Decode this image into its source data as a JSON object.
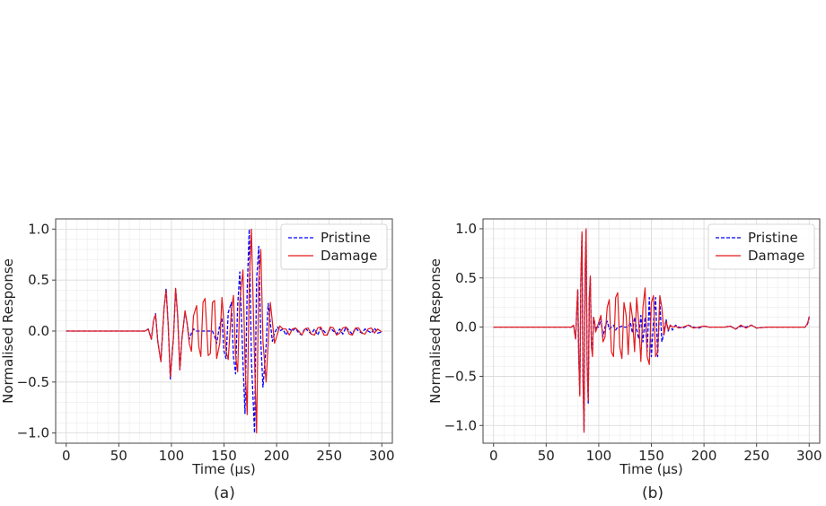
{
  "chart_data": [
    {
      "type": "line",
      "caption": "(a)",
      "xlabel": "Time (μs)",
      "ylabel": "Normalised Response",
      "xlim": [
        -10,
        310
      ],
      "ylim": [
        -1.1,
        1.1
      ],
      "xticks": [
        0,
        50,
        100,
        150,
        200,
        250,
        300
      ],
      "yticks": [
        -1.0,
        -0.5,
        0.0,
        0.5,
        1.0
      ],
      "xtick_labels": [
        "0",
        "50",
        "100",
        "150",
        "200",
        "250",
        "300"
      ],
      "ytick_labels": [
        "−1.0",
        "−0.5",
        "0.0",
        "0.5",
        "1.0"
      ],
      "grid": true,
      "legend_position": "top-right",
      "series": [
        {
          "name": "Pristine",
          "color": "#0000ff",
          "style": "dashed",
          "x": [
            0,
            75,
            78,
            81,
            83,
            85,
            87,
            90,
            93,
            95,
            97,
            99,
            102,
            104,
            106,
            108,
            110,
            113,
            115,
            117,
            119,
            121,
            124,
            126,
            128,
            130,
            132,
            135,
            137,
            139,
            141,
            143,
            146,
            148,
            150,
            152,
            154,
            157,
            159,
            161,
            163,
            165,
            168,
            170,
            172,
            174,
            176,
            179,
            181,
            183,
            185,
            187,
            190,
            192,
            194,
            196,
            198,
            201,
            203,
            206,
            209,
            212,
            215,
            218,
            221,
            224,
            227,
            230,
            233,
            236,
            239,
            242,
            245,
            248,
            251,
            254,
            257,
            260,
            263,
            266,
            269,
            272,
            275,
            278,
            281,
            284,
            287,
            290,
            293,
            296,
            300
          ],
          "y": [
            0,
            0,
            0.02,
            -0.08,
            0.1,
            0.17,
            -0.1,
            -0.3,
            0.22,
            0.42,
            0.05,
            -0.47,
            -0.05,
            0.41,
            0.15,
            -0.38,
            -0.08,
            0.19,
            0.07,
            -0.08,
            -0.02,
            0.02,
            0.0,
            0.0,
            0.0,
            0.0,
            0.0,
            0.0,
            0.0,
            0.0,
            -0.05,
            -0.12,
            0.06,
            0.12,
            -0.2,
            -0.27,
            0.18,
            0.28,
            -0.25,
            -0.42,
            0.25,
            0.58,
            -0.3,
            -0.81,
            0.4,
            1.0,
            -0.28,
            -1.0,
            0.5,
            0.83,
            -0.1,
            -0.55,
            -0.15,
            0.27,
            0.08,
            -0.1,
            -0.02,
            0.04,
            0.0,
            0.02,
            -0.04,
            0.02,
            0.0,
            0.03,
            -0.02,
            -0.04,
            0.03,
            0.0,
            -0.03,
            0.02,
            -0.04,
            0.03,
            0.0,
            -0.04,
            0.03,
            0.0,
            -0.03,
            0.02,
            -0.03,
            0.04,
            0.0,
            -0.03,
            0.03,
            0.0,
            -0.02,
            0.02,
            0.0,
            -0.02,
            0.03,
            -0.02,
            -0.01
          ]
        },
        {
          "name": "Damage",
          "color": "#e41a1c",
          "style": "solid",
          "x": [
            0,
            75,
            78,
            81,
            83,
            85,
            87,
            90,
            93,
            95,
            97,
            99,
            102,
            104,
            106,
            108,
            110,
            113,
            115,
            117,
            119,
            121,
            124,
            126,
            128,
            130,
            132,
            135,
            137,
            139,
            141,
            143,
            146,
            148,
            150,
            152,
            154,
            157,
            159,
            161,
            163,
            165,
            168,
            170,
            172,
            174,
            176,
            179,
            181,
            183,
            185,
            187,
            190,
            192,
            194,
            196,
            198,
            201,
            203,
            206,
            209,
            212,
            215,
            218,
            221,
            224,
            227,
            230,
            233,
            236,
            239,
            242,
            245,
            248,
            251,
            254,
            257,
            260,
            263,
            266,
            269,
            272,
            275,
            278,
            281,
            284,
            287,
            290,
            293,
            296,
            300
          ],
          "y": [
            0,
            0,
            0.02,
            -0.08,
            0.1,
            0.16,
            -0.1,
            -0.3,
            0.22,
            0.4,
            0.05,
            -0.45,
            -0.05,
            0.42,
            0.15,
            -0.38,
            -0.08,
            0.2,
            0.07,
            -0.12,
            -0.2,
            0.15,
            0.25,
            -0.15,
            -0.25,
            0.28,
            0.32,
            -0.24,
            -0.22,
            0.28,
            0.3,
            -0.27,
            -0.12,
            0.33,
            0.07,
            -0.2,
            -0.28,
            0.2,
            0.35,
            -0.24,
            -0.4,
            0.3,
            0.6,
            -0.3,
            -0.82,
            0.45,
            1.0,
            -0.28,
            -1.0,
            0.5,
            0.8,
            -0.1,
            -0.5,
            -0.12,
            0.28,
            0.09,
            -0.12,
            -0.02,
            0.05,
            0.02,
            0.02,
            -0.04,
            0.02,
            0.03,
            0.0,
            -0.04,
            0.02,
            0.03,
            -0.03,
            -0.04,
            0.03,
            0.04,
            -0.04,
            -0.04,
            0.04,
            0.03,
            -0.04,
            -0.02,
            0.03,
            0.04,
            -0.03,
            -0.04,
            0.03,
            0.03,
            -0.02,
            -0.03,
            0.02,
            0.03,
            -0.02,
            0.02,
            -0.01
          ]
        }
      ]
    },
    {
      "type": "line",
      "caption": "(b)",
      "xlabel": "Time (μs)",
      "ylabel": "Normalised Response",
      "xlim": [
        -10,
        310
      ],
      "ylim": [
        -1.18,
        1.1
      ],
      "xticks": [
        0,
        50,
        100,
        150,
        200,
        250,
        300
      ],
      "yticks": [
        -1.0,
        -0.5,
        0.0,
        0.5,
        1.0
      ],
      "xtick_labels": [
        "0",
        "50",
        "100",
        "150",
        "200",
        "250",
        "300"
      ],
      "ytick_labels": [
        "−1.0",
        "−0.5",
        "0.0",
        "0.5",
        "1.0"
      ],
      "grid": true,
      "legend_position": "top-right",
      "series": [
        {
          "name": "Pristine",
          "color": "#0000ff",
          "style": "dashed",
          "x": [
            0,
            74,
            76,
            78,
            79,
            80,
            81,
            82,
            83,
            84,
            85,
            86,
            87,
            88,
            89,
            90,
            91,
            92,
            93,
            94,
            95,
            96,
            97,
            98,
            100,
            102,
            104,
            106,
            108,
            110,
            112,
            114,
            116,
            118,
            120,
            122,
            124,
            126,
            128,
            130,
            132,
            134,
            136,
            138,
            140,
            142,
            144,
            146,
            148,
            150,
            152,
            154,
            156,
            158,
            160,
            162,
            164,
            166,
            168,
            170,
            173,
            176,
            180,
            185,
            190,
            195,
            200,
            205,
            210,
            215,
            220,
            225,
            230,
            235,
            240,
            245,
            250,
            260,
            270,
            280,
            290,
            296,
            298,
            299,
            300
          ],
          "y": [
            0,
            0,
            0.02,
            -0.12,
            0.15,
            0.38,
            -0.3,
            -0.68,
            0.48,
            0.95,
            -0.5,
            -1.05,
            0.55,
            0.98,
            -0.4,
            -0.78,
            0.3,
            0.5,
            -0.2,
            -0.25,
            0.1,
            0.05,
            -0.03,
            0.0,
            0.0,
            0.08,
            -0.1,
            0.0,
            0.06,
            -0.02,
            0.0,
            0.02,
            -0.03,
            0.0,
            0.0,
            0.01,
            0.0,
            0.0,
            0.0,
            0.05,
            -0.06,
            0.1,
            -0.02,
            -0.12,
            0.12,
            -0.15,
            0.1,
            -0.25,
            0.3,
            -0.3,
            0.05,
            0.3,
            -0.3,
            0.25,
            -0.15,
            -0.05,
            0.08,
            -0.04,
            0.02,
            -0.03,
            0.02,
            0.0,
            -0.01,
            0.02,
            0.0,
            -0.01,
            0.01,
            0.0,
            0.0,
            0.0,
            0.0,
            0.01,
            -0.02,
            0.01,
            0.0,
            0.02,
            -0.01,
            0.0,
            0.0,
            0.0,
            0.0,
            0.0,
            0.02,
            0.05,
            0.1
          ]
        },
        {
          "name": "Damage",
          "color": "#e41a1c",
          "style": "solid",
          "x": [
            0,
            74,
            76,
            78,
            79,
            80,
            81,
            82,
            83,
            84,
            85,
            86,
            87,
            88,
            89,
            90,
            91,
            92,
            93,
            94,
            95,
            96,
            97,
            98,
            100,
            102,
            104,
            106,
            108,
            110,
            112,
            114,
            116,
            118,
            120,
            122,
            124,
            126,
            128,
            130,
            132,
            134,
            136,
            138,
            140,
            142,
            144,
            146,
            148,
            150,
            152,
            154,
            156,
            158,
            160,
            162,
            164,
            166,
            168,
            170,
            173,
            176,
            180,
            185,
            190,
            195,
            200,
            205,
            210,
            215,
            220,
            225,
            230,
            235,
            240,
            245,
            250,
            260,
            270,
            280,
            290,
            296,
            298,
            299,
            300
          ],
          "y": [
            0,
            0,
            0.02,
            -0.12,
            0.15,
            0.38,
            -0.3,
            -0.7,
            0.5,
            0.97,
            -0.5,
            -1.07,
            0.55,
            1.0,
            -0.4,
            -0.75,
            0.3,
            0.52,
            -0.2,
            -0.3,
            0.1,
            0.06,
            -0.05,
            -0.02,
            0.05,
            0.12,
            -0.15,
            -0.1,
            0.2,
            0.28,
            -0.25,
            -0.3,
            0.3,
            0.35,
            -0.2,
            -0.32,
            0.25,
            0.12,
            -0.28,
            0.25,
            0.1,
            -0.25,
            0.3,
            0.05,
            -0.35,
            0.2,
            0.4,
            -0.3,
            -0.38,
            0.25,
            0.32,
            -0.3,
            -0.25,
            0.32,
            0.2,
            -0.08,
            0.06,
            -0.03,
            0.02,
            0.0,
            0.01,
            -0.01,
            0.0,
            0.02,
            -0.01,
            0.0,
            0.01,
            0.0,
            0.0,
            0.0,
            0.0,
            0.01,
            -0.02,
            0.02,
            -0.01,
            0.02,
            -0.01,
            0.0,
            0.0,
            0.0,
            0.0,
            0.0,
            0.03,
            0.06,
            0.11
          ]
        }
      ]
    }
  ]
}
